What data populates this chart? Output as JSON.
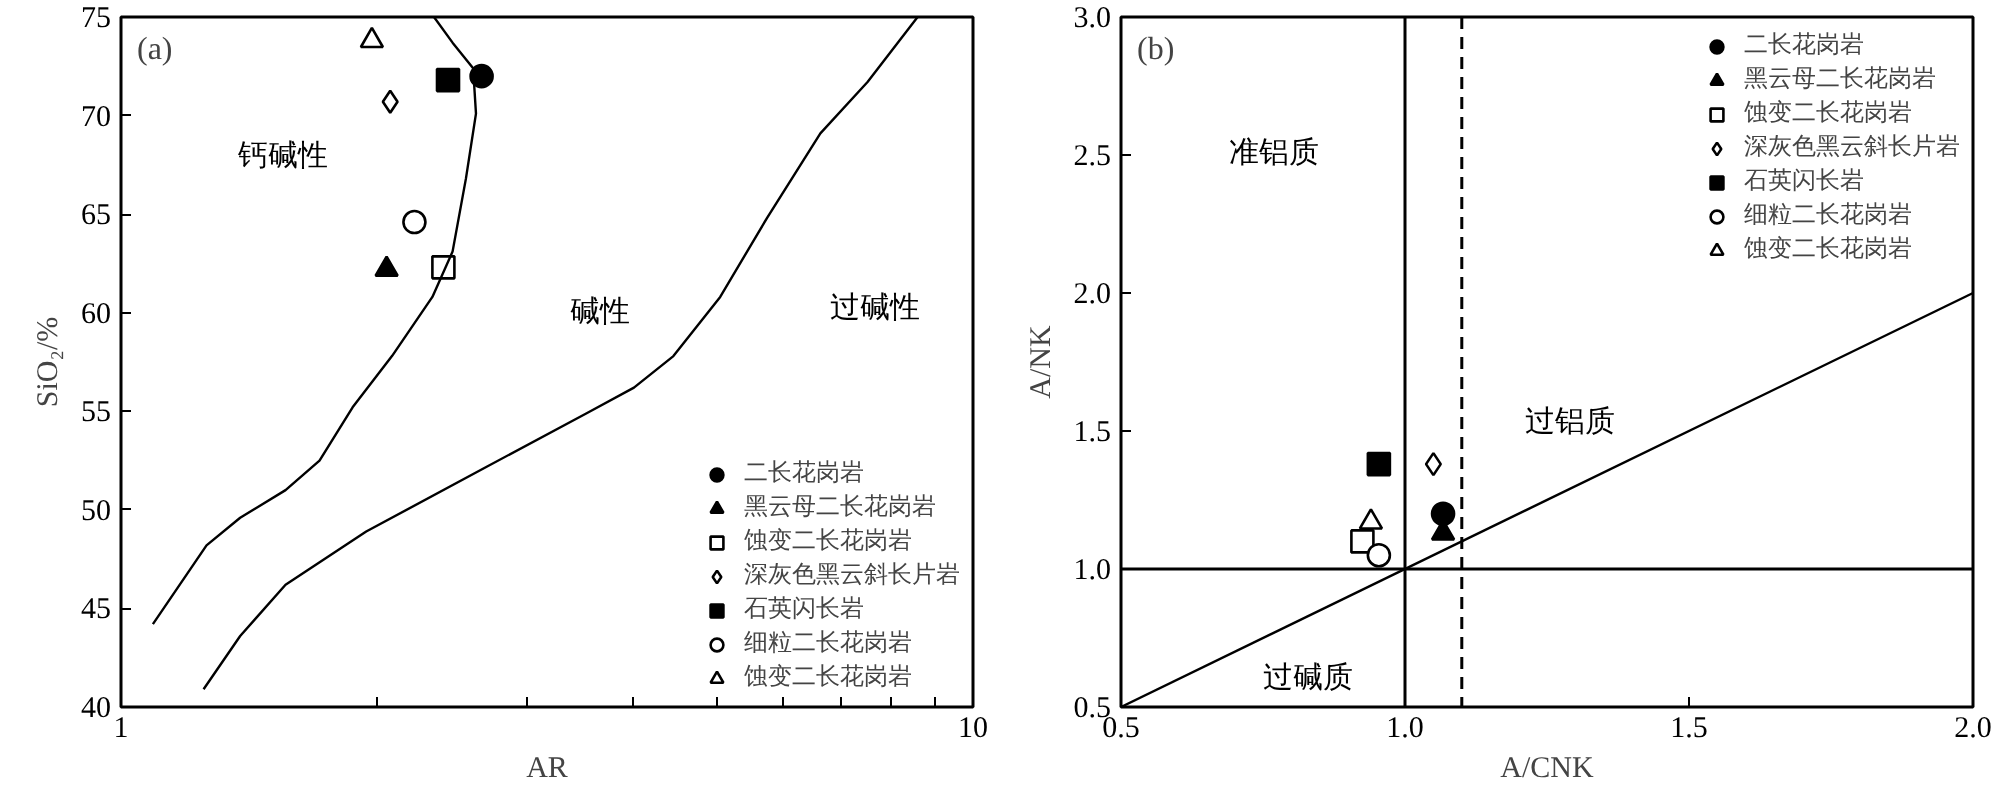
{
  "chart_data": [
    {
      "type": "scatter",
      "title": "(a)",
      "xlabel": "AR",
      "ylabel": "SiO₂/%",
      "log": "x",
      "xlim": [
        1,
        10
      ],
      "xticks": [
        1,
        {
          "value": 2,
          "label": null
        },
        {
          "value": 3,
          "label": null
        },
        {
          "value": 4,
          "label": null
        },
        {
          "value": 5,
          "label": null
        },
        {
          "value": 6,
          "label": null
        },
        {
          "value": 7,
          "label": null
        },
        {
          "value": 8,
          "label": null
        },
        {
          "value": 9,
          "label": null
        },
        10
      ],
      "ylim": [
        40,
        75
      ],
      "yticks": [
        40,
        45,
        50,
        55,
        60,
        65,
        70,
        75
      ],
      "grid": false,
      "legend": "bottom right",
      "annotations": [
        "钙碱性",
        "碱性",
        "过碱性"
      ],
      "series": [
        {
          "name": "二长花岗岩",
          "marker": "circle",
          "color": "#000000",
          "x": [
            2.65
          ],
          "values": [
            72.0
          ]
        },
        {
          "name": "黑云母二长花岗岩",
          "marker": "triangle",
          "color": "#000000",
          "x": [
            2.05
          ],
          "values": [
            62.2
          ]
        },
        {
          "name": "蚀变二长花岗岩",
          "marker": "square",
          "color": "#ffffff",
          "x": [
            2.39
          ],
          "values": [
            62.3
          ]
        },
        {
          "name": "深灰色黑云斜长片岩",
          "marker": "diamond",
          "color": "#ffffff",
          "x": [
            2.07
          ],
          "values": [
            70.7
          ]
        },
        {
          "name": "石英闪长岩",
          "marker": "square",
          "color": "#000000",
          "x": [
            2.42
          ],
          "values": [
            71.8
          ]
        },
        {
          "name": "细粒二长花岗岩",
          "marker": "circle",
          "color": "#ffffff",
          "x": [
            2.21
          ],
          "values": [
            64.6
          ]
        },
        {
          "name": "蚀变二长花岗岩",
          "marker": "triangle",
          "color": "#ffffff",
          "x": [
            1.97
          ],
          "values": [
            73.8
          ]
        },
        {
          "type": "line",
          "color": "#000000",
          "x": [
            1.09,
            1.26,
            1.38,
            1.56,
            1.71,
            1.87,
            2.08,
            2.32,
            2.45,
            2.54,
            2.61,
            2.59,
            2.45,
            2.33
          ],
          "values": [
            44.2,
            48.2,
            49.6,
            51.0,
            52.5,
            55.2,
            57.8,
            60.8,
            63.1,
            66.8,
            70.1,
            72.4,
            73.7,
            75.0
          ]
        },
        {
          "type": "line",
          "color": "#000000",
          "x": [
            1.25,
            1.38,
            1.56,
            1.94,
            2.69,
            3.52,
            4.0,
            4.45,
            5.05,
            5.73,
            6.62,
            7.52,
            8.61
          ],
          "values": [
            40.9,
            43.6,
            46.2,
            48.9,
            52.2,
            54.9,
            56.2,
            57.8,
            60.8,
            64.8,
            69.1,
            71.7,
            75.0
          ]
        }
      ]
    },
    {
      "type": "scatter",
      "title": "(b)",
      "xlabel": "A/CNK",
      "ylabel": "A/NK",
      "xlim": [
        0.5,
        2.0
      ],
      "xticks": [
        {
          "value": 0.5,
          "label": "0.5"
        },
        {
          "value": 1.0,
          "label": "1.0"
        },
        {
          "value": 1.5,
          "label": "1.5"
        },
        {
          "value": 2.0,
          "label": "2.0"
        }
      ],
      "ylim": [
        0.5,
        3.0
      ],
      "yticks": [
        {
          "value": 0.5,
          "label": "0.5"
        },
        {
          "value": 1.0,
          "label": "1.0"
        },
        {
          "value": 1.5,
          "label": "1.5"
        },
        {
          "value": 2.0,
          "label": "2.0"
        },
        {
          "value": 2.5,
          "label": "2.5"
        },
        {
          "value": 3.0,
          "label": "3.0"
        }
      ],
      "grid": false,
      "legend": "top right",
      "ref_lines": [
        {
          "axis": "x",
          "value": 1.0,
          "line_style": "solid"
        },
        {
          "axis": "x",
          "value": 1.1,
          "line_style": "dashed"
        },
        {
          "axis": "y",
          "value": 1.0,
          "line_style": "solid"
        }
      ],
      "annotations": [
        "准铝质",
        "过铝质",
        "过碱质"
      ],
      "series": [
        {
          "name": "二长花岗岩",
          "marker": "circle",
          "color": "#000000",
          "x": [
            1.067
          ],
          "values": [
            1.2
          ]
        },
        {
          "name": "黑云母二长花岗岩",
          "marker": "triangle",
          "color": "#000000",
          "x": [
            1.067
          ],
          "values": [
            1.13
          ]
        },
        {
          "name": "蚀变二长花岗岩",
          "marker": "square",
          "color": "#ffffff",
          "x": [
            0.925
          ],
          "values": [
            1.1
          ]
        },
        {
          "name": "深灰色黑云斜长片岩",
          "marker": "diamond",
          "color": "#ffffff",
          "x": [
            1.05
          ],
          "values": [
            1.38
          ]
        },
        {
          "name": "石英闪长岩",
          "marker": "square",
          "color": "#000000",
          "x": [
            0.954
          ],
          "values": [
            1.38
          ]
        },
        {
          "name": "细粒二长花岗岩",
          "marker": "circle",
          "color": "#ffffff",
          "x": [
            0.954
          ],
          "values": [
            1.05
          ]
        },
        {
          "name": "蚀变二长花岗岩",
          "marker": "triangle",
          "color": "#ffffff",
          "x": [
            0.94
          ],
          "values": [
            1.17
          ]
        },
        {
          "type": "line",
          "color": "#000000",
          "x": [
            0.5,
            2.0
          ],
          "values": [
            0.5,
            2.0
          ]
        }
      ]
    }
  ]
}
